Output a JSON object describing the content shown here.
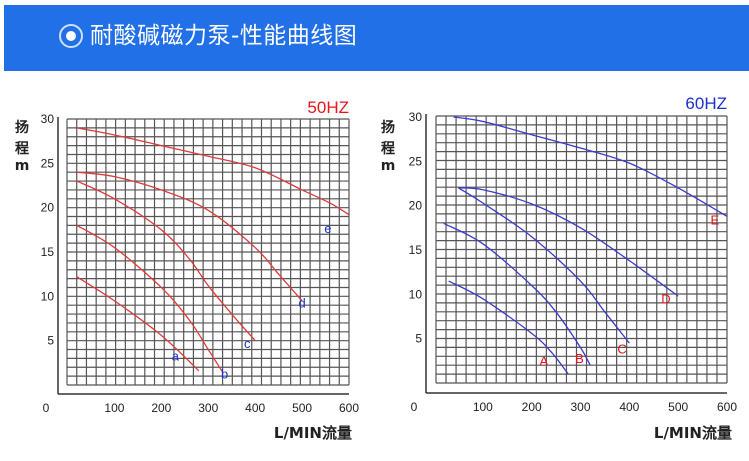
{
  "header": {
    "title": "耐酸碱磁力泵-性能曲线图",
    "icon": "radio-dot-icon",
    "background": "#2170e8"
  },
  "chart_data": [
    {
      "type": "line",
      "title": "50HZ",
      "title_color": "#e8141b",
      "xlabel": "L/MIN流量",
      "ylabel": [
        "扬",
        "程",
        "m"
      ],
      "xlim": [
        0,
        600
      ],
      "ylim": [
        0,
        30
      ],
      "xticks": [
        "0",
        "100",
        "200",
        "300",
        "400",
        "500",
        "600"
      ],
      "yticks": [
        "5",
        "10",
        "15",
        "20",
        "25",
        "30"
      ],
      "grid": true,
      "line_color": "#e03a3a",
      "label_color": "#1a2fd0",
      "series": [
        {
          "name": "a",
          "label_at": [
            230,
            3.2
          ],
          "points": [
            [
              20,
              12.2
            ],
            [
              100,
              9.5
            ],
            [
              200,
              5.6
            ],
            [
              280,
              1.6
            ]
          ]
        },
        {
          "name": "b",
          "label_at": [
            335,
            1.2
          ],
          "points": [
            [
              20,
              18
            ],
            [
              100,
              15.5
            ],
            [
              200,
              11
            ],
            [
              260,
              7.3
            ],
            [
              300,
              4
            ],
            [
              330,
              1.5
            ]
          ]
        },
        {
          "name": "c",
          "label_at": [
            383,
            4.6
          ],
          "points": [
            [
              20,
              23
            ],
            [
              100,
              21
            ],
            [
              200,
              17.5
            ],
            [
              260,
              14.2
            ],
            [
              300,
              11.2
            ],
            [
              350,
              8
            ],
            [
              400,
              5
            ]
          ]
        },
        {
          "name": "d",
          "label_at": [
            500,
            9.2
          ],
          "points": [
            [
              20,
              24
            ],
            [
              100,
              23.5
            ],
            [
              200,
              22
            ],
            [
              300,
              19.7
            ],
            [
              400,
              15.5
            ],
            [
              450,
              12.5
            ],
            [
              500,
              9.5
            ]
          ]
        },
        {
          "name": "e",
          "label_at": [
            555,
            17.6
          ],
          "points": [
            [
              20,
              29
            ],
            [
              100,
              28.2
            ],
            [
              200,
              27
            ],
            [
              300,
              25.8
            ],
            [
              400,
              24.5
            ],
            [
              500,
              22
            ],
            [
              560,
              20.5
            ],
            [
              600,
              19.2
            ]
          ]
        }
      ]
    },
    {
      "type": "line",
      "title": "60HZ",
      "title_color": "#1a2fd0",
      "xlabel": "L/MIN流量",
      "ylabel": [
        "扬",
        "程",
        "m"
      ],
      "xlim": [
        0,
        600
      ],
      "ylim": [
        0,
        30
      ],
      "xticks": [
        "0",
        "100",
        "200",
        "300",
        "400",
        "500",
        "600"
      ],
      "yticks": [
        "5",
        "10",
        "15",
        "20",
        "25",
        "30"
      ],
      "grid": true,
      "line_color": "#3a3acf",
      "label_color": "#e8141b",
      "series": [
        {
          "name": "A",
          "label_at": [
            225,
            2.4
          ],
          "points": [
            [
              30,
              11.5
            ],
            [
              100,
              9.5
            ],
            [
              200,
              5.6
            ],
            [
              240,
              3.5
            ],
            [
              275,
              1
            ]
          ]
        },
        {
          "name": "B",
          "label_at": [
            298,
            2.7
          ],
          "points": [
            [
              20,
              18
            ],
            [
              100,
              15.7
            ],
            [
              200,
              11
            ],
            [
              250,
              8
            ],
            [
              300,
              4
            ],
            [
              320,
              2
            ]
          ]
        },
        {
          "name": "C",
          "label_at": [
            385,
            3.8
          ],
          "points": [
            [
              50,
              22
            ],
            [
              100,
              20.3
            ],
            [
              200,
              16.5
            ],
            [
              300,
              11.5
            ],
            [
              350,
              8
            ],
            [
              400,
              4.5
            ]
          ]
        },
        {
          "name": "D",
          "label_at": [
            475,
            9.4
          ],
          "points": [
            [
              50,
              22
            ],
            [
              100,
              21.8
            ],
            [
              200,
              20.2
            ],
            [
              300,
              17.5
            ],
            [
              400,
              13.8
            ],
            [
              500,
              9.8
            ]
          ]
        },
        {
          "name": "E",
          "label_at": [
            575,
            18.3
          ],
          "points": [
            [
              40,
              30
            ],
            [
              100,
              29.5
            ],
            [
              200,
              28
            ],
            [
              300,
              26.5
            ],
            [
              400,
              24.8
            ],
            [
              500,
              22
            ],
            [
              600,
              18.8
            ]
          ]
        }
      ]
    }
  ]
}
